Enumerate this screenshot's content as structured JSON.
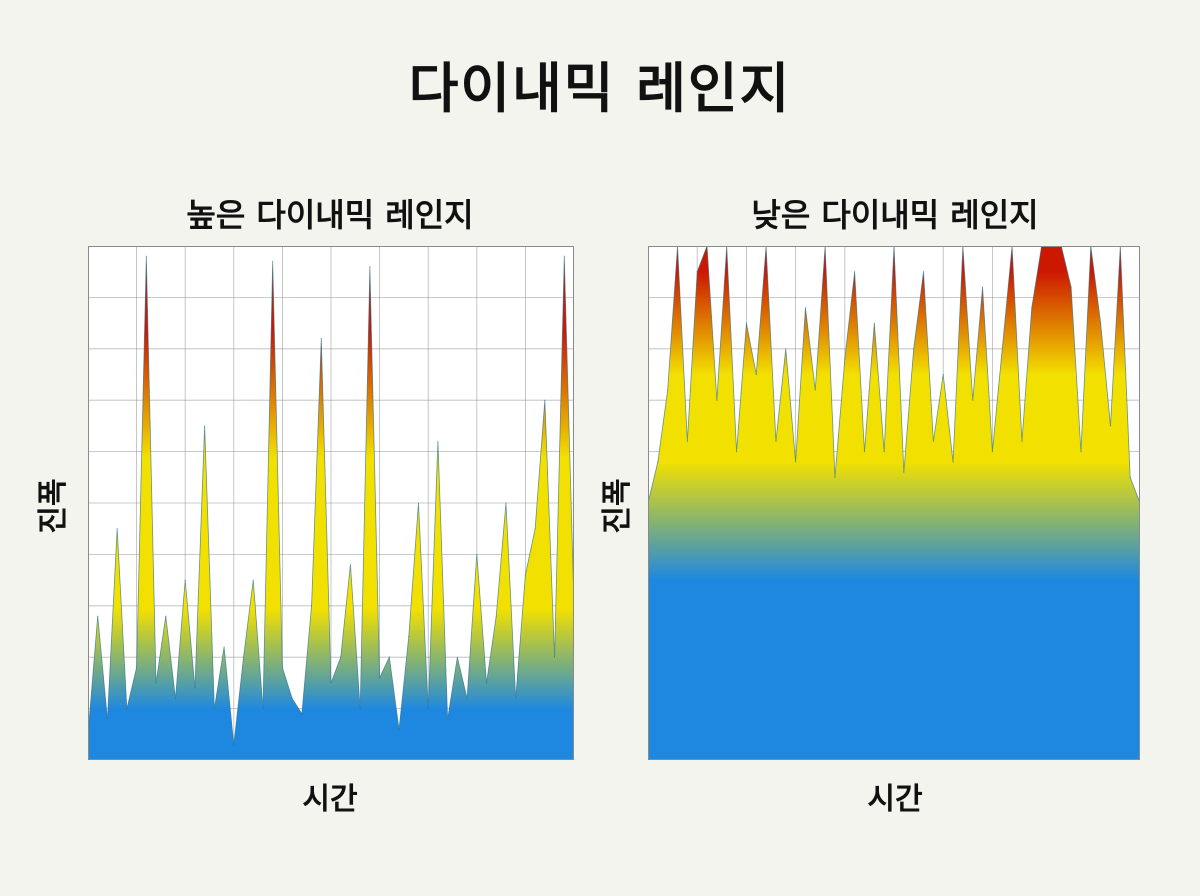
{
  "title": "다이내믹 레인지",
  "chart_data": [
    {
      "type": "area",
      "title": "높은 다이내믹 레인지",
      "xlabel": "시간",
      "ylabel": "진폭",
      "ylim": [
        0,
        1
      ],
      "grid": true,
      "colors": {
        "low": "#1e88e0",
        "mid": "#f2e000",
        "high": "#cc1800"
      },
      "x": [
        0,
        2,
        4,
        6,
        8,
        10,
        12,
        14,
        16,
        18,
        20,
        22,
        24,
        26,
        28,
        30,
        32,
        34,
        36,
        38,
        40,
        42,
        44,
        46,
        48,
        50,
        52,
        54,
        56,
        58,
        60,
        62,
        64,
        66,
        68,
        70,
        72,
        74,
        76,
        78,
        80,
        82,
        84,
        86,
        88,
        90,
        92,
        94,
        96,
        98,
        100
      ],
      "values": [
        0.05,
        0.28,
        0.08,
        0.45,
        0.1,
        0.18,
        0.98,
        0.15,
        0.28,
        0.12,
        0.35,
        0.14,
        0.65,
        0.1,
        0.22,
        0.03,
        0.2,
        0.35,
        0.1,
        0.97,
        0.18,
        0.12,
        0.09,
        0.3,
        0.82,
        0.15,
        0.2,
        0.38,
        0.1,
        0.96,
        0.16,
        0.2,
        0.06,
        0.24,
        0.5,
        0.1,
        0.62,
        0.08,
        0.2,
        0.12,
        0.4,
        0.15,
        0.28,
        0.5,
        0.12,
        0.36,
        0.45,
        0.7,
        0.2,
        0.98,
        0.3
      ]
    },
    {
      "type": "area",
      "title": "낮은 다이내믹 레인지",
      "xlabel": "시간",
      "ylabel": "진폭",
      "ylim": [
        0,
        1
      ],
      "grid": true,
      "colors": {
        "low": "#1e88e0",
        "mid": "#f2e000",
        "high": "#cc1800"
      },
      "x": [
        0,
        2,
        4,
        6,
        8,
        10,
        12,
        14,
        16,
        18,
        20,
        22,
        24,
        26,
        28,
        30,
        32,
        34,
        36,
        38,
        40,
        42,
        44,
        46,
        48,
        50,
        52,
        54,
        56,
        58,
        60,
        62,
        64,
        66,
        68,
        70,
        72,
        74,
        76,
        78,
        80,
        82,
        84,
        86,
        88,
        90,
        92,
        94,
        96,
        98,
        100
      ],
      "values": [
        0.5,
        0.58,
        0.72,
        1.0,
        0.62,
        0.95,
        1.0,
        0.7,
        1.0,
        0.6,
        0.85,
        0.75,
        1.0,
        0.62,
        0.8,
        0.58,
        0.88,
        0.72,
        1.0,
        0.55,
        0.78,
        0.95,
        0.6,
        0.85,
        0.6,
        1.0,
        0.56,
        0.8,
        0.95,
        0.62,
        0.75,
        0.58,
        1.0,
        0.7,
        0.92,
        0.6,
        0.8,
        1.0,
        0.62,
        0.88,
        1.0,
        1.0,
        1.0,
        0.92,
        0.6,
        1.0,
        0.85,
        0.65,
        1.0,
        0.55,
        0.5
      ]
    }
  ]
}
